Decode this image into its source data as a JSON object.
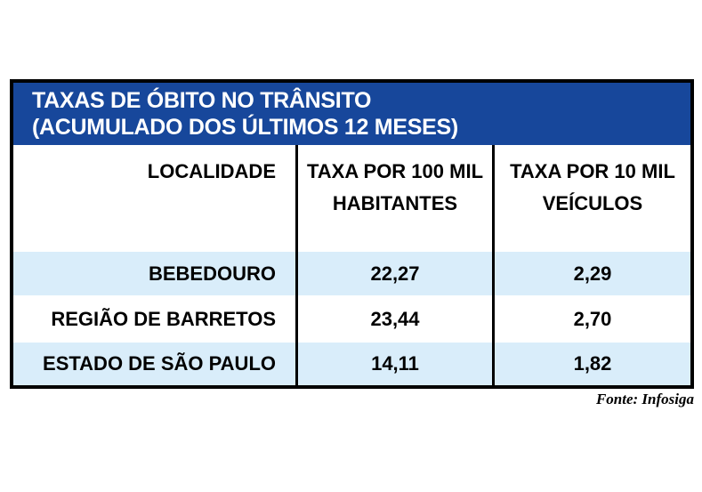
{
  "figure": {
    "title_line1": "TAXAS DE ÓBITO NO TRÂNSITO",
    "title_line2": "(ACUMULADO DOS ÚLTIMOS 12 MESES)",
    "source": "Fonte: Infosiga",
    "colors": {
      "title_bg": "#17479B",
      "title_text": "#FFFFFF",
      "row_alt_bg": "#D9EDFA",
      "border": "#000000",
      "body_text": "#000000"
    },
    "table": {
      "columns": [
        {
          "line1": "LOCALIDADE",
          "line2": ""
        },
        {
          "line1": "TAXA POR 100 MIL",
          "line2": "HABITANTES"
        },
        {
          "line1": "TAXA POR 10 MIL",
          "line2": "VEÍCULOS"
        }
      ],
      "rows": [
        {
          "localidade": "BEBEDOURO",
          "taxa_100mil": "22,27",
          "taxa_10mil": "2,29"
        },
        {
          "localidade": "REGIÃO DE BARRETOS",
          "taxa_100mil": "23,44",
          "taxa_10mil": "2,70"
        },
        {
          "localidade": "ESTADO DE SÃO PAULO",
          "taxa_100mil": "14,11",
          "taxa_10mil": "1,82"
        }
      ]
    }
  },
  "chart_data": {
    "type": "table",
    "title": "TAXAS DE ÓBITO NO TRÂNSITO (ACUMULADO DOS ÚLTIMOS 12 MESES)",
    "columns": [
      "LOCALIDADE",
      "TAXA POR 100 MIL HABITANTES",
      "TAXA POR 10 MIL VEÍCULOS"
    ],
    "rows": [
      [
        "BEBEDOURO",
        22.27,
        2.29
      ],
      [
        "REGIÃO DE BARRETOS",
        23.44,
        2.7
      ],
      [
        "ESTADO DE SÃO PAULO",
        14.11,
        1.82
      ]
    ],
    "source": "Fonte: Infosiga"
  }
}
